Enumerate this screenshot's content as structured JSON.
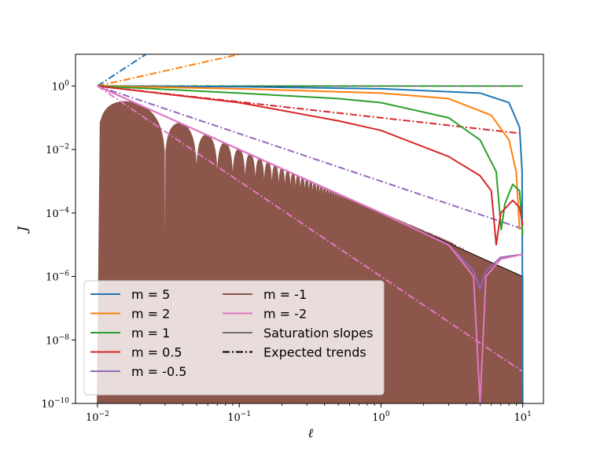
{
  "chart_data": {
    "type": "line",
    "xlabel": "ℓ",
    "ylabel": "J",
    "x_scale": "log",
    "y_scale": "log",
    "xlim": [
      0.007,
      14
    ],
    "ylim": [
      1e-10,
      10
    ],
    "x_ticks": [
      {
        "value": 0.01,
        "base": "10",
        "exp": "−2"
      },
      {
        "value": 0.1,
        "base": "10",
        "exp": "−1"
      },
      {
        "value": 1,
        "base": "10",
        "exp": "0"
      },
      {
        "value": 10,
        "base": "10",
        "exp": "1"
      }
    ],
    "y_ticks": [
      {
        "value": 1e-10,
        "base": "10",
        "exp": "−10"
      },
      {
        "value": 1e-08,
        "base": "10",
        "exp": "−8"
      },
      {
        "value": 1e-06,
        "base": "10",
        "exp": "−6"
      },
      {
        "value": 0.0001,
        "base": "10",
        "exp": "−4"
      },
      {
        "value": 0.01,
        "base": "10",
        "exp": "−2"
      },
      {
        "value": 1,
        "base": "10",
        "exp": "0"
      }
    ],
    "legend_position": "lower-left",
    "legend": [
      {
        "label": "m = 5",
        "color": "#1f77b4",
        "style": "solid"
      },
      {
        "label": "m = 2",
        "color": "#ff7f0e",
        "style": "solid"
      },
      {
        "label": "m = 1",
        "color": "#2ca02c",
        "style": "solid"
      },
      {
        "label": "m = 0.5",
        "color": "#d62728",
        "style": "solid"
      },
      {
        "label": "m = -0.5",
        "color": "#9467bd",
        "style": "solid"
      },
      {
        "label": "m = -1",
        "color": "#8c564b",
        "style": "solid"
      },
      {
        "label": "m = -2",
        "color": "#e377c2",
        "style": "solid"
      },
      {
        "label": "Saturation slopes",
        "color": "#000000",
        "style": "thin"
      },
      {
        "label": "Expected trends",
        "color": "#000000",
        "style": "dashdot"
      }
    ],
    "series": [
      {
        "name": "m = 5",
        "color": "#1f77b4",
        "style": "solid",
        "x": [
          0.01,
          0.1,
          1,
          5,
          8,
          9.5,
          9.9,
          10
        ],
        "y": [
          1,
          0.95,
          0.82,
          0.6,
          0.3,
          0.05,
          0.002,
          1e-10
        ]
      },
      {
        "name": "m = 2",
        "color": "#ff7f0e",
        "style": "solid",
        "x": [
          0.01,
          0.1,
          1,
          3,
          6,
          8,
          9,
          9.5
        ],
        "y": [
          1,
          0.82,
          0.6,
          0.4,
          0.12,
          0.02,
          0.002,
          3e-05
        ]
      },
      {
        "name": "m = 1",
        "color": "#2ca02c",
        "style": "solid",
        "x": [
          0.01,
          0.1,
          0.5,
          1,
          3,
          5,
          6.5,
          7.05,
          7.5,
          8.5,
          9.5,
          10
        ],
        "y": [
          1,
          0.6,
          0.4,
          0.3,
          0.1,
          0.02,
          0.002,
          3e-05,
          0.0002,
          0.0008,
          0.0005,
          2e-05
        ]
      },
      {
        "name": "m = 0.5",
        "color": "#d62728",
        "style": "solid",
        "x": [
          0.01,
          0.1,
          0.5,
          1,
          3,
          5,
          6,
          6.5,
          7,
          8.5,
          9.5,
          10
        ],
        "y": [
          1,
          0.3,
          0.08,
          0.04,
          0.006,
          0.0015,
          0.0005,
          1e-05,
          0.0001,
          0.00025,
          0.00015,
          4e-05
        ]
      },
      {
        "name": "m = -0.5",
        "color": "#9467bd",
        "style": "solid",
        "x": [
          0.01,
          0.1,
          0.3,
          1,
          3,
          4.5,
          5,
          5.5,
          7,
          10
        ],
        "y": [
          1,
          0.01,
          0.0011,
          0.0001,
          1e-05,
          1.5e-06,
          4e-07,
          1.5e-06,
          4e-06,
          5e-06
        ]
      },
      {
        "name": "m = -2",
        "color": "#e377c2",
        "style": "solid",
        "x": [
          0.01,
          0.1,
          1,
          3,
          4.5,
          5,
          5.5,
          7,
          10
        ],
        "y": [
          1,
          0.01,
          0.0001,
          1e-05,
          1e-06,
          1e-10,
          1e-06,
          3.5e-06,
          5e-06
        ]
      }
    ],
    "oscillating_series": {
      "name": "m = -1",
      "color": "#8c564b",
      "envelope_x": [
        0.01,
        10
      ],
      "envelope_y": [
        1,
        1e-06
      ],
      "period": 0.02
    },
    "saturation_slopes": [
      {
        "x": [
          0.01,
          10
        ],
        "y": [
          1,
          1e-06
        ]
      },
      {
        "x": [
          0.01,
          10
        ],
        "y": [
          1,
          1
        ]
      }
    ],
    "expected_trends": [
      {
        "name": "m = 5",
        "color": "#1f77b4",
        "x": [
          0.01,
          0.022
        ],
        "y": [
          1,
          10
        ]
      },
      {
        "name": "m = 2",
        "color": "#ff7f0e",
        "x": [
          0.01,
          0.1
        ],
        "y": [
          1,
          10
        ]
      },
      {
        "name": "m = 1",
        "color": "#2ca02c",
        "x": [
          0.01,
          10
        ],
        "y": [
          1,
          1
        ]
      },
      {
        "name": "m = 0.5",
        "color": "#d62728",
        "x": [
          0.01,
          10
        ],
        "y": [
          1,
          0.0316
        ]
      },
      {
        "name": "m = -0.5",
        "color": "#9467bd",
        "x": [
          0.01,
          10
        ],
        "y": [
          1,
          3.16e-05
        ]
      },
      {
        "name": "m = -2",
        "color": "#e377c2",
        "x": [
          0.01,
          10
        ],
        "y": [
          1,
          1e-09
        ]
      }
    ]
  }
}
